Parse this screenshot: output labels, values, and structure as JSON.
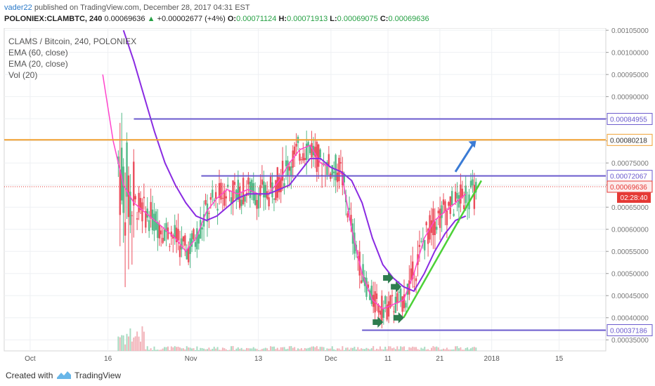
{
  "header": {
    "author": "vader22",
    "published_text": "published on TradingView.com, December 28, 2017 04:31 EST",
    "symbol": "POLONIEX:CLAMBTC, 240",
    "last": "0.00069636",
    "change_arrow": "▲",
    "change": "+0.00002677 (+4%)",
    "o_label": "O:",
    "o_value": "0.00071124",
    "h_label": "H:",
    "h_value": "0.00071913",
    "l_label": "L:",
    "l_value": "0.00069075",
    "c_label": "C:",
    "c_value": "0.00069636"
  },
  "legend": {
    "title": "CLAMS / Bitcoin, 240, POLONIEX",
    "ema60": "EMA (60, close)",
    "ema20": "EMA (20, close)",
    "vol": "Vol (20)"
  },
  "footer": {
    "created_with": "Created with",
    "brand": "TradingView"
  },
  "chart_data": {
    "type": "candlestick",
    "y_axis": {
      "ticks": [
        "0.00035000",
        "0.00040000",
        "0.00045000",
        "0.00050000",
        "0.00055000",
        "0.00060000",
        "0.00065000",
        "0.00070000",
        "0.00075000",
        "0.00080000",
        "0.00085000",
        "0.00090000",
        "0.00095000",
        "0.00100000",
        "0.00105000"
      ],
      "range": [
        0.000325,
        0.001055
      ]
    },
    "x_axis": {
      "ticks": [
        "Oct",
        "16",
        "Nov",
        "13",
        "Dec",
        "11",
        "21",
        "2018",
        "15"
      ],
      "tick_days": [
        -6,
        9,
        25,
        38,
        52,
        63,
        73,
        83,
        96
      ],
      "range": [
        -11,
        105
      ]
    },
    "price_labels": [
      {
        "value": 0.00084955,
        "text": "0.00084955",
        "color": "#6a5acd"
      },
      {
        "value": 0.00080218,
        "text": "0.00080218",
        "color": "#f0a030"
      },
      {
        "value": 0.00072067,
        "text": "0.00072067",
        "color": "#6a5acd"
      },
      {
        "value": 0.00069636,
        "text": "0.00069636",
        "color": "#e53935"
      },
      {
        "value": 0.00037186,
        "text": "0.00037186",
        "color": "#6a5acd"
      }
    ],
    "countdown": "02:28:40",
    "levels": [
      {
        "name": "resistance-high",
        "value": 0.00084955,
        "from_day": 14,
        "color": "#6a5acd"
      },
      {
        "name": "orange-level",
        "value": 0.00080218,
        "from_day": -11,
        "color": "#f0a030"
      },
      {
        "name": "resistance-mid",
        "value": 0.00072067,
        "from_day": 27,
        "color": "#6a5acd"
      },
      {
        "name": "support-low",
        "value": 0.00037186,
        "from_day": 58,
        "color": "#6a5acd"
      }
    ],
    "last_price": 0.00069636,
    "ema60": [
      [
        12,
        0.00105
      ],
      [
        14,
        0.00098
      ],
      [
        16,
        0.0009
      ],
      [
        18,
        0.00082
      ],
      [
        20,
        0.00075
      ],
      [
        22,
        0.0007
      ],
      [
        24,
        0.00066
      ],
      [
        26,
        0.00063
      ],
      [
        28,
        0.00062
      ],
      [
        30,
        0.00063
      ],
      [
        32,
        0.00065
      ],
      [
        34,
        0.00067
      ],
      [
        36,
        0.00068
      ],
      [
        38,
        0.00068
      ],
      [
        40,
        0.00068
      ],
      [
        42,
        0.00069
      ],
      [
        44,
        0.0007
      ],
      [
        46,
        0.00073
      ],
      [
        48,
        0.00076
      ],
      [
        50,
        0.00076
      ],
      [
        52,
        0.00074
      ],
      [
        54,
        0.00073
      ],
      [
        56,
        0.00071
      ],
      [
        58,
        0.00066
      ],
      [
        60,
        0.00058
      ],
      [
        62,
        0.00052
      ],
      [
        64,
        0.00049
      ],
      [
        66,
        0.00047
      ],
      [
        68,
        0.00046
      ],
      [
        70,
        0.0005
      ],
      [
        72,
        0.00055
      ],
      [
        74,
        0.00059
      ],
      [
        76,
        0.00062
      ],
      [
        78,
        0.00063
      ]
    ],
    "ema20": [
      [
        8,
        0.00095
      ],
      [
        10,
        0.0008
      ],
      [
        12,
        0.0007
      ],
      [
        14,
        0.00066
      ],
      [
        16,
        0.00064
      ],
      [
        18,
        0.00062
      ],
      [
        20,
        0.0006
      ],
      [
        22,
        0.00058
      ],
      [
        24,
        0.00055
      ],
      [
        26,
        0.00058
      ],
      [
        28,
        0.00064
      ],
      [
        30,
        0.00067
      ],
      [
        32,
        0.00069
      ],
      [
        34,
        0.00068
      ],
      [
        36,
        0.00069
      ],
      [
        38,
        0.00068
      ],
      [
        40,
        0.00068
      ],
      [
        42,
        0.00071
      ],
      [
        44,
        0.00075
      ],
      [
        46,
        0.00078
      ],
      [
        48,
        0.00079
      ],
      [
        50,
        0.00075
      ],
      [
        52,
        0.00074
      ],
      [
        54,
        0.00073
      ],
      [
        56,
        0.0006
      ],
      [
        58,
        0.0005
      ],
      [
        60,
        0.00044
      ],
      [
        62,
        0.00042
      ],
      [
        64,
        0.00043
      ],
      [
        66,
        0.00044
      ],
      [
        68,
        0.0005
      ],
      [
        70,
        0.00058
      ],
      [
        72,
        0.00062
      ],
      [
        74,
        0.00064
      ],
      [
        76,
        0.00066
      ],
      [
        78,
        0.00068
      ]
    ],
    "trend_line": {
      "from": [
        66,
        0.0004
      ],
      "to": [
        81,
        0.00071
      ],
      "color": "#4cd137"
    },
    "projection_arrow": {
      "from": [
        76,
        0.00073
      ],
      "to": [
        80,
        0.0008
      ],
      "color": "#3a7bd5"
    },
    "markers": [
      {
        "day": 61,
        "value": 0.00039
      },
      {
        "day": 65,
        "value": 0.0004
      },
      {
        "day": 63,
        "value": 0.00049
      },
      {
        "day": 64.5,
        "value": 0.00047
      }
    ],
    "colors": {
      "up": "#53b987",
      "down": "#eb4d5c",
      "ema60": "#8a2be2",
      "ema20": "#ff44cc"
    }
  }
}
